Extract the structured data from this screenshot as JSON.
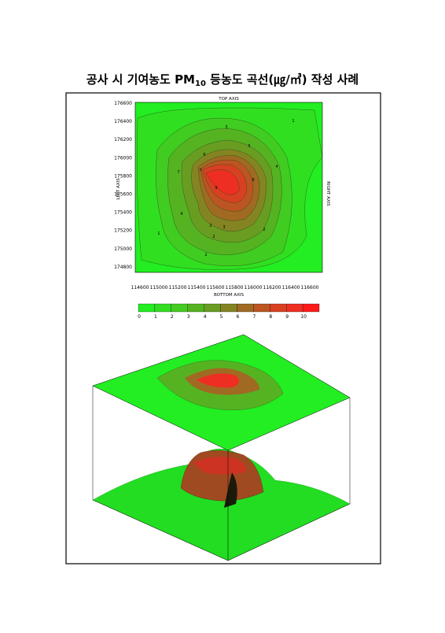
{
  "title": {
    "main": "공사 시 기여농도 PM",
    "sub": "10",
    "rest": " 등농도 곡선(㎍/㎥) 작성 사례"
  },
  "contour_map": {
    "top_axis": "TOP AXIS",
    "bottom_axis": "BOTTOM AXIS",
    "left_axis": "LEFT AXIS",
    "right_axis": "RIGHT AXIS",
    "x_ticks": [
      "114600",
      "115000",
      "115200",
      "115400",
      "115600",
      "115800",
      "116000",
      "116200",
      "116400",
      "116600"
    ],
    "y_ticks": [
      "176600",
      "176400",
      "176200",
      "176000",
      "175800",
      "175600",
      "175400",
      "175200",
      "175000",
      "174800"
    ],
    "contour_labels": [
      "1",
      "3",
      "5",
      "6",
      "7",
      "9",
      "8",
      "4",
      "2",
      "2",
      "3",
      "2",
      "1",
      "2",
      "4",
      "7"
    ]
  },
  "colorbar": {
    "ticks": [
      "0",
      "1",
      "2",
      "3",
      "4",
      "5",
      "6",
      "7",
      "8",
      "9",
      "10"
    ]
  }
}
